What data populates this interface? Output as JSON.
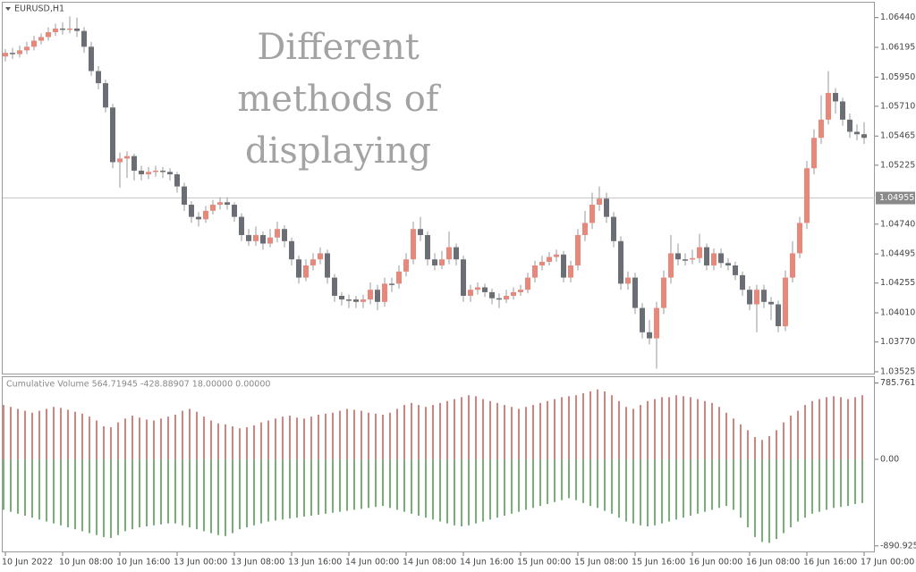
{
  "chart_data": [
    {
      "type": "candlestick",
      "title": "EURUSD,H1",
      "annotation": [
        "Different",
        "methods of",
        "displaying"
      ],
      "up_color": "#e8877a",
      "down_color": "#6b6f75",
      "ylim": [
        1.0351,
        1.0657
      ],
      "yticks": [
        {
          "value": 1.0644,
          "label": "1.06440"
        },
        {
          "value": 1.06195,
          "label": "1.06195"
        },
        {
          "value": 1.0595,
          "label": "1.05950"
        },
        {
          "value": 1.0571,
          "label": "1.05710"
        },
        {
          "value": 1.05465,
          "label": "1.05465"
        },
        {
          "value": 1.05225,
          "label": "1.05225"
        },
        {
          "value": 1.0474,
          "label": "1.04740"
        },
        {
          "value": 1.04495,
          "label": "1.04495"
        },
        {
          "value": 1.04255,
          "label": "1.04255"
        },
        {
          "value": 1.0401,
          "label": "1.04010"
        },
        {
          "value": 1.0377,
          "label": "1.03770"
        },
        {
          "value": 1.03525,
          "label": "1.03525"
        }
      ],
      "current_price": {
        "value": 1.04955,
        "label": "1.04955"
      },
      "ohlc": [
        [
          1.0612,
          1.0618,
          1.0608,
          1.0615
        ],
        [
          1.0615,
          1.0619,
          1.061,
          1.0614
        ],
        [
          1.0614,
          1.0621,
          1.0611,
          1.0617
        ],
        [
          1.0617,
          1.0624,
          1.0614,
          1.062
        ],
        [
          1.062,
          1.0629,
          1.0617,
          1.0625
        ],
        [
          1.0625,
          1.0631,
          1.0622,
          1.0628
        ],
        [
          1.0628,
          1.0636,
          1.0625,
          1.0632
        ],
        [
          1.0632,
          1.0639,
          1.0629,
          1.0635
        ],
        [
          1.0635,
          1.064,
          1.063,
          1.0634
        ],
        [
          1.0634,
          1.0645,
          1.0631,
          1.0635
        ],
        [
          1.0635,
          1.0644,
          1.0628,
          1.0633
        ],
        [
          1.0633,
          1.0636,
          1.0615,
          1.062
        ],
        [
          1.062,
          1.0624,
          1.0596,
          1.06
        ],
        [
          1.06,
          1.0604,
          1.0585,
          1.059
        ],
        [
          1.059,
          1.0593,
          1.0566,
          1.057
        ],
        [
          1.057,
          1.0573,
          1.052,
          1.0525
        ],
        [
          1.0525,
          1.0533,
          1.0504,
          1.0528
        ],
        [
          1.0528,
          1.0534,
          1.0512,
          1.053
        ],
        [
          1.053,
          1.0532,
          1.051,
          1.0518
        ],
        [
          1.0518,
          1.0522,
          1.051,
          1.0515
        ],
        [
          1.0515,
          1.0521,
          1.0511,
          1.0517
        ],
        [
          1.0517,
          1.0522,
          1.0513,
          1.0518
        ],
        [
          1.0518,
          1.0521,
          1.0512,
          1.0517
        ],
        [
          1.0517,
          1.052,
          1.051,
          1.0515
        ],
        [
          1.0515,
          1.0517,
          1.05,
          1.0505
        ],
        [
          1.0505,
          1.0508,
          1.0485,
          1.049
        ],
        [
          1.049,
          1.0493,
          1.0475,
          1.048
        ],
        [
          1.048,
          1.0484,
          1.0472,
          1.0478
        ],
        [
          1.0478,
          1.0489,
          1.0475,
          1.0485
        ],
        [
          1.0485,
          1.0494,
          1.0482,
          1.049
        ],
        [
          1.049,
          1.0496,
          1.0486,
          1.0492
        ],
        [
          1.0492,
          1.0496,
          1.0486,
          1.049
        ],
        [
          1.049,
          1.0492,
          1.0476,
          1.048
        ],
        [
          1.048,
          1.0483,
          1.046,
          1.0465
        ],
        [
          1.0465,
          1.047,
          1.0456,
          1.046
        ],
        [
          1.046,
          1.0472,
          1.0456,
          1.0465
        ],
        [
          1.0465,
          1.0468,
          1.0453,
          1.0458
        ],
        [
          1.0458,
          1.047,
          1.0455,
          1.0463
        ],
        [
          1.0463,
          1.0476,
          1.0459,
          1.047
        ],
        [
          1.047,
          1.0473,
          1.0455,
          1.046
        ],
        [
          1.046,
          1.0463,
          1.044,
          1.0445
        ],
        [
          1.0445,
          1.0448,
          1.0425,
          1.043
        ],
        [
          1.043,
          1.0445,
          1.0427,
          1.044
        ],
        [
          1.044,
          1.045,
          1.0436,
          1.0445
        ],
        [
          1.0445,
          1.0455,
          1.0441,
          1.045
        ],
        [
          1.045,
          1.0453,
          1.0425,
          1.043
        ],
        [
          1.043,
          1.0433,
          1.041,
          1.0415
        ],
        [
          1.0415,
          1.0418,
          1.0407,
          1.0412
        ],
        [
          1.0412,
          1.0416,
          1.0405,
          1.0412
        ],
        [
          1.0412,
          1.0415,
          1.0405,
          1.041
        ],
        [
          1.041,
          1.0416,
          1.0405,
          1.0412
        ],
        [
          1.0412,
          1.0426,
          1.0408,
          1.042
        ],
        [
          1.042,
          1.0424,
          1.0403,
          1.041
        ],
        [
          1.041,
          1.043,
          1.0406,
          1.0425
        ],
        [
          1.0425,
          1.043,
          1.0418,
          1.0425
        ],
        [
          1.0425,
          1.044,
          1.0421,
          1.0435
        ],
        [
          1.0435,
          1.045,
          1.0431,
          1.0445
        ],
        [
          1.0445,
          1.0476,
          1.0441,
          1.047
        ],
        [
          1.047,
          1.048,
          1.046,
          1.0465
        ],
        [
          1.0465,
          1.0468,
          1.044,
          1.0445
        ],
        [
          1.0445,
          1.045,
          1.0436,
          1.044
        ],
        [
          1.044,
          1.0452,
          1.0437,
          1.0445
        ],
        [
          1.0445,
          1.0468,
          1.0441,
          1.0455
        ],
        [
          1.0455,
          1.0458,
          1.044,
          1.0445
        ],
        [
          1.0445,
          1.0448,
          1.041,
          1.0415
        ],
        [
          1.0415,
          1.0424,
          1.041,
          1.042
        ],
        [
          1.042,
          1.0426,
          1.0416,
          1.0422
        ],
        [
          1.0422,
          1.0425,
          1.0414,
          1.0418
        ],
        [
          1.0418,
          1.0421,
          1.0408,
          1.0413
        ],
        [
          1.0413,
          1.0417,
          1.0405,
          1.0412
        ],
        [
          1.0412,
          1.042,
          1.0409,
          1.0415
        ],
        [
          1.0415,
          1.0422,
          1.0412,
          1.0418
        ],
        [
          1.0418,
          1.0424,
          1.0415,
          1.042
        ],
        [
          1.042,
          1.0434,
          1.0417,
          1.043
        ],
        [
          1.043,
          1.0444,
          1.0426,
          1.044
        ],
        [
          1.044,
          1.0448,
          1.0436,
          1.0443
        ],
        [
          1.0443,
          1.0451,
          1.044,
          1.0447
        ],
        [
          1.0447,
          1.0453,
          1.0443,
          1.0449
        ],
        [
          1.0449,
          1.0452,
          1.0426,
          1.043
        ],
        [
          1.043,
          1.0444,
          1.0426,
          1.044
        ],
        [
          1.044,
          1.047,
          1.0436,
          1.0465
        ],
        [
          1.0465,
          1.0485,
          1.046,
          1.0475
        ],
        [
          1.0475,
          1.05,
          1.047,
          1.049
        ],
        [
          1.049,
          1.0505,
          1.0485,
          1.0495
        ],
        [
          1.0495,
          1.05,
          1.0475,
          1.048
        ],
        [
          1.048,
          1.0484,
          1.0455,
          1.046
        ],
        [
          1.046,
          1.0464,
          1.042,
          1.0425
        ],
        [
          1.0425,
          1.0435,
          1.042,
          1.043
        ],
        [
          1.043,
          1.0434,
          1.04,
          1.0405
        ],
        [
          1.0405,
          1.0409,
          1.038,
          1.0385
        ],
        [
          1.0385,
          1.0395,
          1.0375,
          1.038
        ],
        [
          1.038,
          1.041,
          1.0355,
          1.0405
        ],
        [
          1.0405,
          1.0436,
          1.04,
          1.043
        ],
        [
          1.043,
          1.0465,
          1.0425,
          1.045
        ],
        [
          1.045,
          1.0458,
          1.044,
          1.0445
        ],
        [
          1.0445,
          1.045,
          1.044,
          1.0445
        ],
        [
          1.0445,
          1.0453,
          1.0441,
          1.0446
        ],
        [
          1.0446,
          1.0466,
          1.0442,
          1.0455
        ],
        [
          1.0455,
          1.0458,
          1.0436,
          1.044
        ],
        [
          1.044,
          1.0454,
          1.0436,
          1.045
        ],
        [
          1.045,
          1.0454,
          1.0438,
          1.0442
        ],
        [
          1.0442,
          1.0446,
          1.0436,
          1.044
        ],
        [
          1.044,
          1.0443,
          1.0428,
          1.0432
        ],
        [
          1.0432,
          1.0435,
          1.0415,
          1.042
        ],
        [
          1.042,
          1.0423,
          1.0403,
          1.0408
        ],
        [
          1.0408,
          1.0424,
          1.0385,
          1.042
        ],
        [
          1.042,
          1.0424,
          1.0405,
          1.041
        ],
        [
          1.041,
          1.0414,
          1.0395,
          1.0408
        ],
        [
          1.0408,
          1.0411,
          1.0385,
          1.039
        ],
        [
          1.039,
          1.0436,
          1.0386,
          1.043
        ],
        [
          1.043,
          1.046,
          1.0426,
          1.045
        ],
        [
          1.045,
          1.048,
          1.0446,
          1.0475
        ],
        [
          1.0475,
          1.0526,
          1.047,
          1.052
        ],
        [
          1.052,
          1.0552,
          1.0515,
          1.0545
        ],
        [
          1.0545,
          1.058,
          1.054,
          1.056
        ],
        [
          1.056,
          1.06,
          1.0556,
          1.0582
        ],
        [
          1.0582,
          1.0586,
          1.0565,
          1.0575
        ],
        [
          1.0575,
          1.0578,
          1.0555,
          1.056
        ],
        [
          1.056,
          1.0565,
          1.0545,
          1.055
        ],
        [
          1.055,
          1.0556,
          1.0543,
          1.0548
        ],
        [
          1.0548,
          1.0558,
          1.054,
          1.0545
        ]
      ]
    },
    {
      "type": "bar",
      "title": "Cumulative Volume 564.71945 -428.88907 18.00000 0.00000",
      "ylim": [
        -948,
        855
      ],
      "yticks": [
        {
          "value": 785.76195,
          "label": "785.76195"
        },
        {
          "value": 0,
          "label": "0.00"
        },
        {
          "value": -890.92534,
          "label": "-890.92534"
        }
      ],
      "categories": [
        "10 Jun 2022",
        null,
        null,
        null,
        null,
        null,
        null,
        null,
        "10 Jun 08:00",
        null,
        null,
        null,
        null,
        null,
        null,
        null,
        "10 Jun 16:00",
        null,
        null,
        null,
        null,
        null,
        null,
        null,
        "13 Jun 00:00",
        null,
        null,
        null,
        null,
        null,
        null,
        null,
        "13 Jun 08:00",
        null,
        null,
        null,
        null,
        null,
        null,
        null,
        "13 Jun 16:00",
        null,
        null,
        null,
        null,
        null,
        null,
        null,
        "14 Jun 00:00",
        null,
        null,
        null,
        null,
        null,
        null,
        null,
        "14 Jun 08:00",
        null,
        null,
        null,
        null,
        null,
        null,
        null,
        "14 Jun 16:00",
        null,
        null,
        null,
        null,
        null,
        null,
        null,
        "15 Jun 00:00",
        null,
        null,
        null,
        null,
        null,
        null,
        null,
        "15 Jun 08:00",
        null,
        null,
        null,
        null,
        null,
        null,
        null,
        "15 Jun 16:00",
        null,
        null,
        null,
        null,
        null,
        null,
        null,
        "16 Jun 00:00",
        null,
        null,
        null,
        null,
        null,
        null,
        null,
        "16 Jun 08:00",
        null,
        null,
        null,
        null,
        null,
        null,
        null,
        "16 Jun 16:00",
        null,
        null,
        null,
        null,
        null,
        null,
        null,
        "17 Jun 00:00"
      ],
      "series": [
        {
          "color": "#b8322a",
          "values": [
            560,
            540,
            520,
            500,
            480,
            500,
            520,
            540,
            530,
            510,
            490,
            470,
            440,
            400,
            340,
            330,
            380,
            420,
            450,
            430,
            410,
            400,
            420,
            440,
            460,
            500,
            520,
            490,
            440,
            400,
            370,
            360,
            340,
            320,
            330,
            350,
            380,
            400,
            420,
            440,
            450,
            430,
            420,
            440,
            460,
            470,
            480,
            500,
            520,
            510,
            500,
            480,
            470,
            460,
            480,
            520,
            560,
            580,
            560,
            540,
            560,
            580,
            600,
            620,
            640,
            660,
            650,
            620,
            600,
            580,
            560,
            540,
            520,
            540,
            560,
            580,
            600,
            620,
            640,
            650,
            660,
            680,
            700,
            720,
            700,
            660,
            600,
            540,
            520,
            560,
            600,
            620,
            640,
            640,
            660,
            650,
            640,
            620,
            600,
            580,
            540,
            480,
            420,
            360,
            300,
            230,
            200,
            240,
            300,
            380,
            450,
            500,
            560,
            600,
            620,
            640,
            650,
            640,
            620,
            640,
            660
          ]
        },
        {
          "color": "#1f7a1f",
          "values": [
            -520,
            -540,
            -560,
            -580,
            -600,
            -620,
            -640,
            -660,
            -680,
            -700,
            -720,
            -740,
            -760,
            -780,
            -800,
            -810,
            -780,
            -740,
            -720,
            -700,
            -690,
            -680,
            -670,
            -660,
            -660,
            -680,
            -700,
            -720,
            -740,
            -760,
            -780,
            -790,
            -760,
            -720,
            -700,
            -680,
            -660,
            -640,
            -630,
            -620,
            -610,
            -600,
            -590,
            -580,
            -570,
            -560,
            -550,
            -540,
            -530,
            -520,
            -510,
            -500,
            -490,
            -480,
            -500,
            -520,
            -540,
            -560,
            -580,
            -600,
            -620,
            -640,
            -660,
            -680,
            -690,
            -680,
            -660,
            -640,
            -620,
            -600,
            -580,
            -560,
            -540,
            -520,
            -500,
            -480,
            -460,
            -440,
            -420,
            -400,
            -420,
            -450,
            -480,
            -500,
            -530,
            -560,
            -600,
            -640,
            -660,
            -680,
            -690,
            -680,
            -660,
            -640,
            -620,
            -600,
            -580,
            -560,
            -540,
            -520,
            -500,
            -480,
            -520,
            -600,
            -700,
            -800,
            -850,
            -860,
            -820,
            -760,
            -700,
            -640,
            -600,
            -560,
            -540,
            -520,
            -500,
            -490,
            -480,
            -460,
            -450
          ]
        }
      ]
    }
  ]
}
